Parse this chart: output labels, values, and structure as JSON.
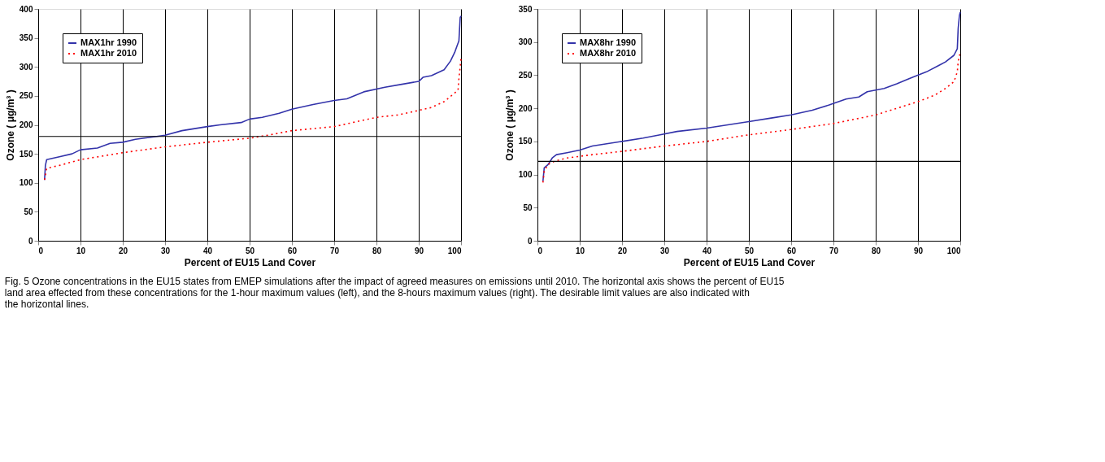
{
  "chart_data": [
    {
      "type": "line",
      "xlabel": "Percent of EU15 Land Cover",
      "ylabel": "Ozone ( μg/m³ )",
      "xlim": [
        0,
        100
      ],
      "ylim": [
        0,
        400
      ],
      "xticks": [
        0,
        10,
        20,
        30,
        40,
        50,
        60,
        70,
        80,
        90,
        100
      ],
      "yticks": [
        0,
        50,
        100,
        150,
        200,
        250,
        300,
        350,
        400
      ],
      "grid": "x",
      "legend": "top left",
      "marker": "none",
      "series": [
        {
          "name": "MAX1hr 1990",
          "color": "#3333aa",
          "line_style": "solid",
          "x": [
            1.5,
            1.7,
            2,
            5,
            8,
            10,
            14,
            17,
            20,
            23,
            28,
            30,
            34,
            40,
            43,
            48,
            50,
            53,
            57,
            60,
            65,
            70,
            73,
            77,
            82,
            86,
            90,
            91,
            93,
            96,
            97.5,
            98.5,
            99,
            99.5,
            99.8,
            100
          ],
          "values": [
            105,
            130,
            140,
            145,
            150,
            157,
            160,
            168,
            170,
            175,
            180,
            182,
            190,
            197,
            200,
            204,
            210,
            213,
            220,
            227,
            235,
            242,
            245,
            257,
            265,
            270,
            275,
            282,
            285,
            295,
            310,
            325,
            335,
            345,
            385,
            388
          ]
        },
        {
          "name": "MAX1hr 2010",
          "color": "#ff0000",
          "line_style": "dotted",
          "x": [
            1.5,
            2,
            5,
            10,
            20,
            30,
            40,
            50,
            55,
            60,
            70,
            75,
            80,
            85,
            90,
            93,
            96,
            98.5,
            99.3,
            99.5,
            99.8,
            100
          ],
          "values": [
            105,
            125,
            130,
            140,
            152,
            162,
            170,
            177,
            183,
            190,
            197,
            205,
            213,
            217,
            225,
            230,
            240,
            255,
            260,
            280,
            300,
            315
          ]
        }
      ],
      "ref_lines": [
        {
          "axis": "y",
          "value": 180,
          "label": null,
          "color": "#000000"
        }
      ],
      "annotations": [
        "Fig. 5 Ozone concentrations in the EU15 states from EMEP simulations after the impact of agreed measures on emissions until 2010. The horizontal axis shows the percent of EU15 land area effected from these concentrations for the 1-hour maximum values (left), and the 8-hours maximum values (right). The desirable limit values are also indicated with the horizontal lines."
      ]
    },
    {
      "type": "line",
      "xlabel": "Percent of EU15 Land Cover",
      "ylabel": "Ozone ( μg/m³ )",
      "xlim": [
        0,
        100
      ],
      "ylim": [
        0,
        350
      ],
      "xticks": [
        0,
        10,
        20,
        30,
        40,
        50,
        60,
        70,
        80,
        90,
        100
      ],
      "yticks": [
        0,
        50,
        100,
        150,
        200,
        250,
        300,
        350
      ],
      "grid": "x",
      "legend": "top left",
      "marker": "none",
      "series": [
        {
          "name": "MAX8hr 1990",
          "color": "#3333aa",
          "line_style": "solid",
          "x": [
            1.3,
            1.6,
            2.5,
            3.5,
            4.5,
            7,
            10,
            13,
            17,
            20,
            25,
            29,
            33,
            40,
            45,
            50,
            55,
            60,
            65,
            69,
            73,
            76,
            78,
            82,
            85,
            88,
            92,
            95,
            96.5,
            98.5,
            99.3,
            99.5,
            99.8,
            100
          ],
          "values": [
            90,
            110,
            115,
            125,
            130,
            133,
            137,
            143,
            147,
            150,
            155,
            160,
            165,
            170,
            175,
            180,
            185,
            190,
            197,
            205,
            214,
            217,
            225,
            230,
            237,
            245,
            255,
            265,
            270,
            280,
            290,
            320,
            340,
            345
          ]
        },
        {
          "name": "MAX8hr 2010",
          "color": "#ff0000",
          "line_style": "dotted",
          "x": [
            1.3,
            1.6,
            2.5,
            4,
            7,
            13,
            20,
            30,
            40,
            50,
            60,
            70,
            80,
            85,
            90,
            94,
            96.5,
            98.5,
            99.3,
            99.5,
            100
          ],
          "values": [
            88,
            105,
            115,
            120,
            125,
            130,
            135,
            143,
            150,
            160,
            168,
            177,
            190,
            200,
            210,
            220,
            230,
            240,
            255,
            270,
            285
          ]
        }
      ],
      "ref_lines": [
        {
          "axis": "y",
          "value": 120,
          "label": null,
          "color": "#000000"
        }
      ]
    }
  ]
}
